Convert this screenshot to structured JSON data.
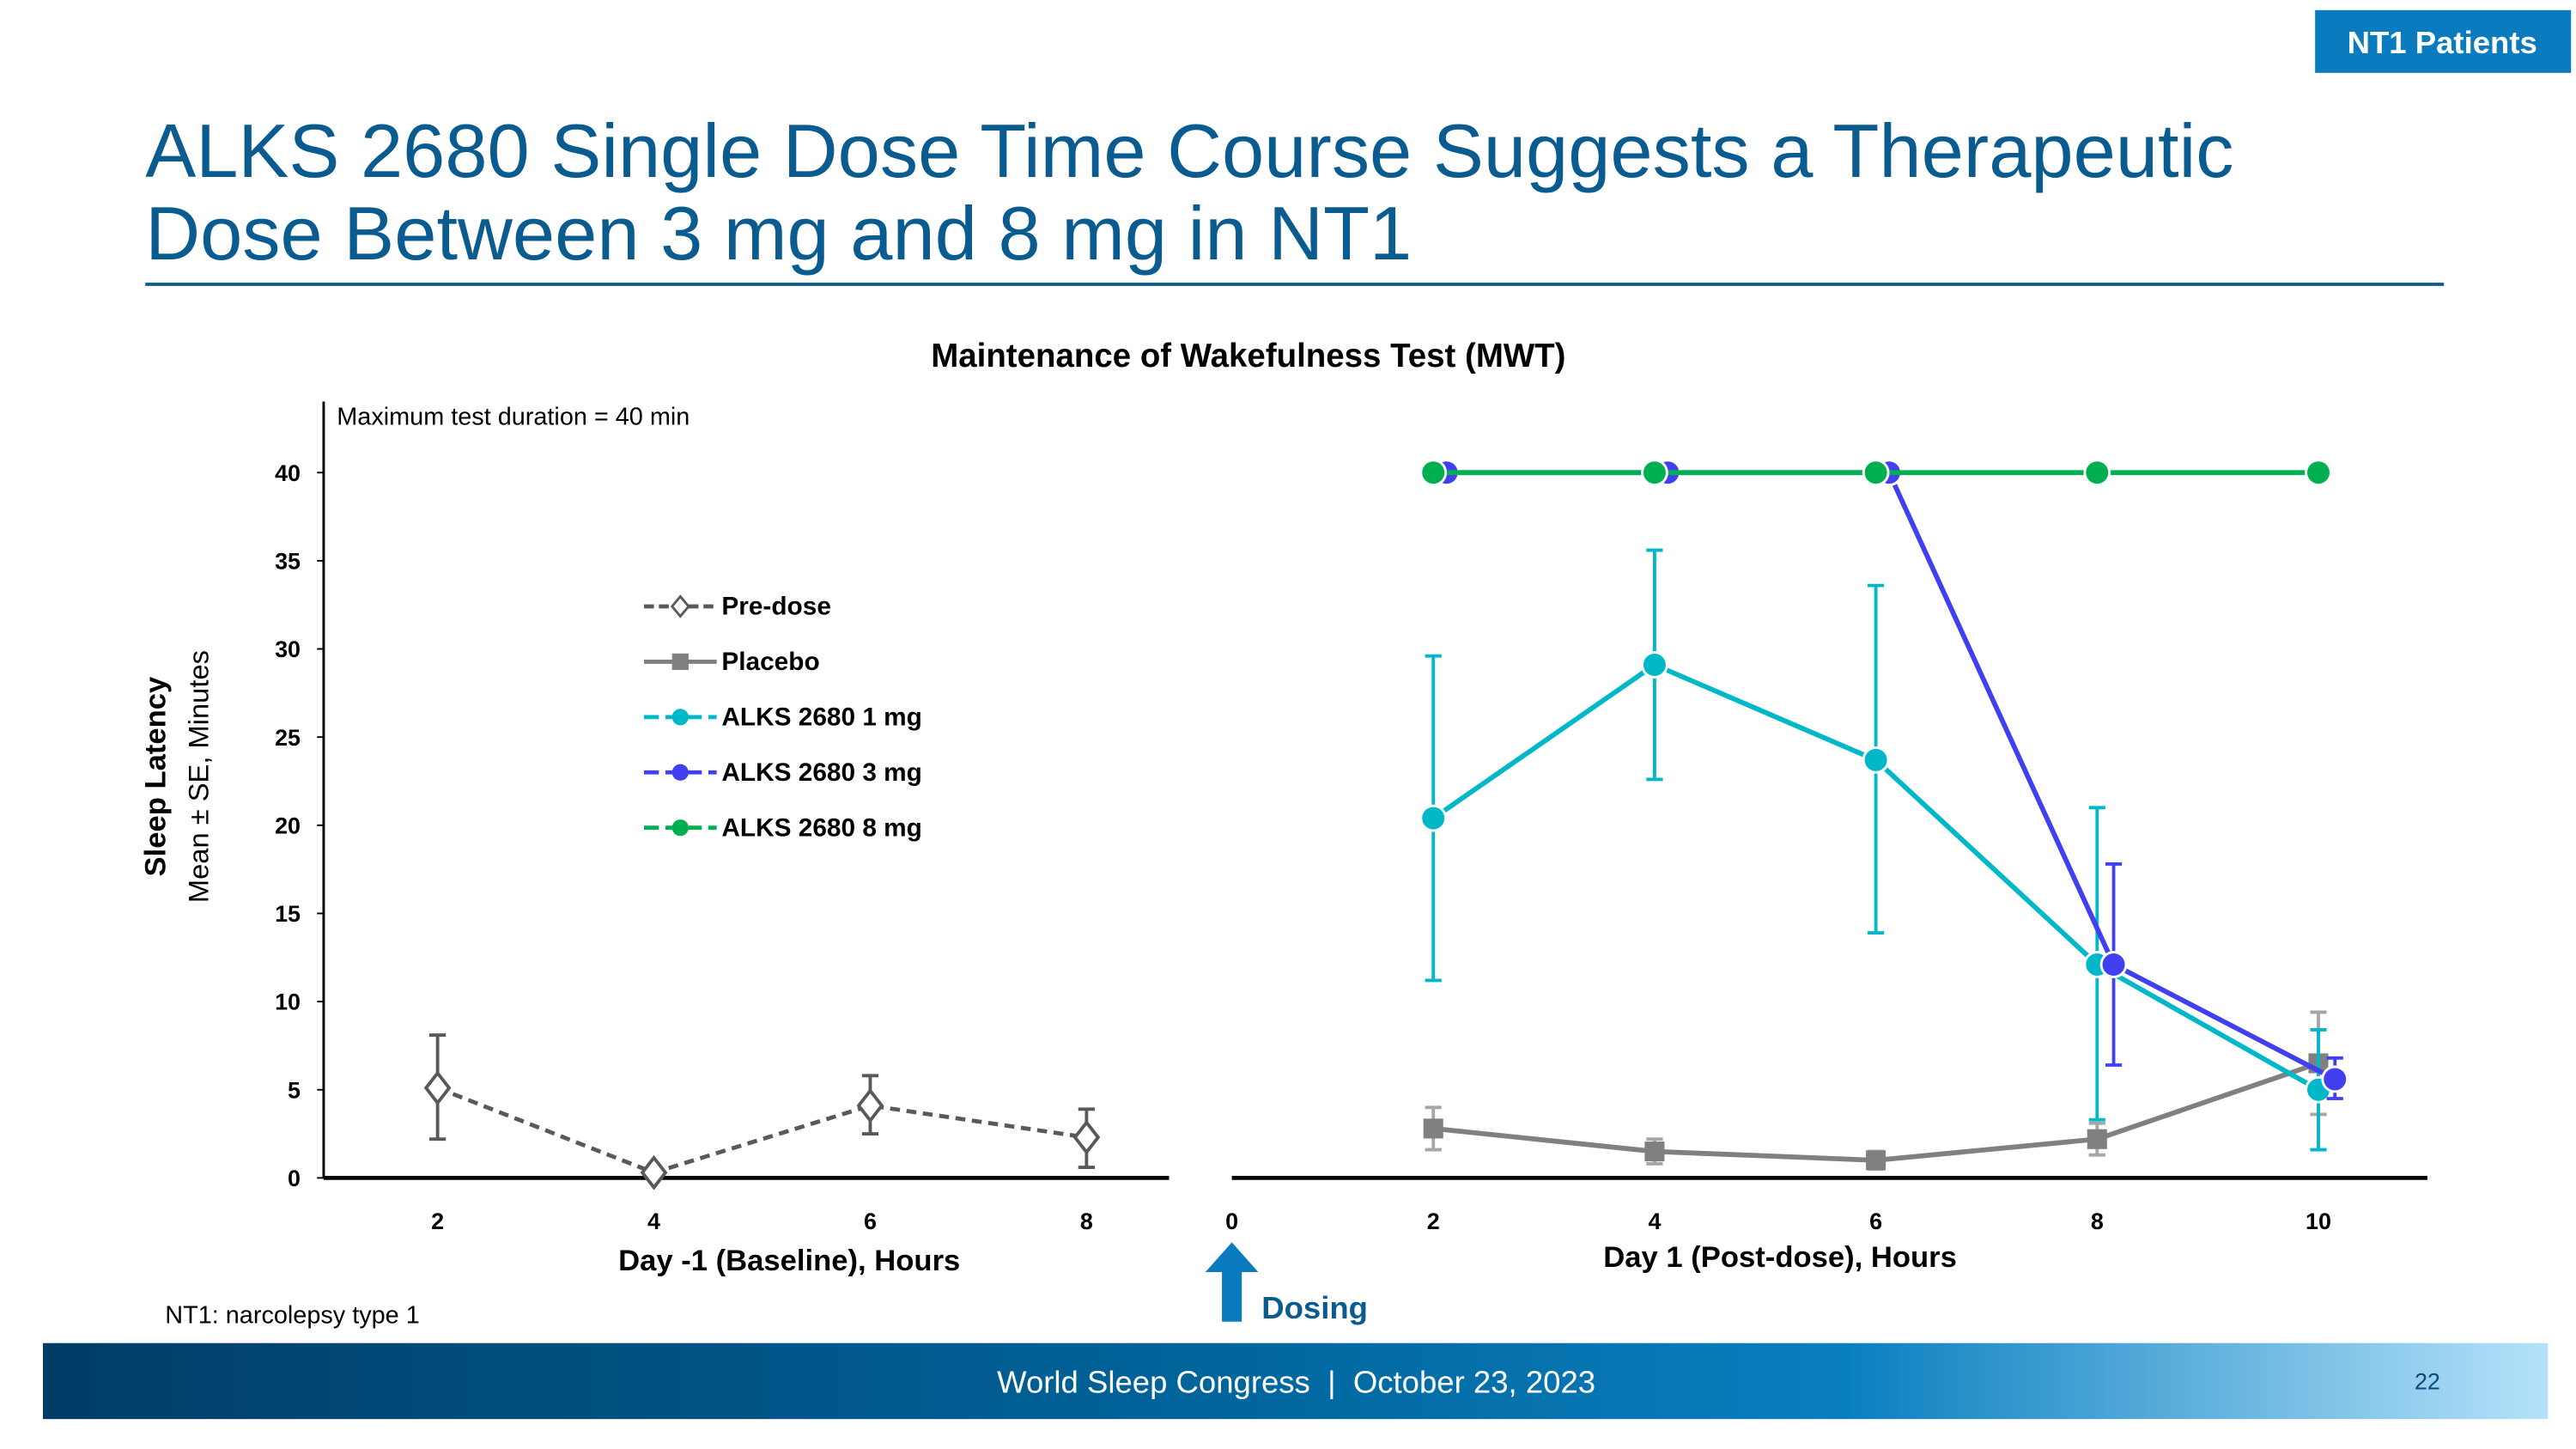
{
  "badge": "NT1 Patients",
  "title_line1": "ALKS 2680 Single Dose Time Course Suggests a Therapeutic",
  "title_line2": "Dose Between 3 mg and 8 mg in NT1",
  "footnote": "NT1: narcolepsy type 1",
  "dosing_label": "Dosing",
  "footer": {
    "text": "World Sleep Congress  |  October 23, 2023",
    "page": "22"
  },
  "colors": {
    "brand": "#0a5b8f",
    "badge": "#0a7bbf",
    "pre": "#595959",
    "placebo": "#808080",
    "mg1": "#00b8c8",
    "mg3": "#4040f0",
    "mg8": "#00b050"
  },
  "chart_data": {
    "type": "line",
    "title": "Maintenance of Wakefulness Test (MWT)",
    "annotation": "Maximum test duration = 40 min",
    "ylabel": "Sleep Latency",
    "ylabel2": "Mean ± SE, Minutes",
    "ylim": [
      0,
      40
    ],
    "yticks": [
      "0",
      "5",
      "10",
      "15",
      "20",
      "25",
      "30",
      "35",
      "40"
    ],
    "legend_position": "upper-left",
    "panels": [
      {
        "xlabel": "Day -1 (Baseline), Hours",
        "xticks": [
          "2",
          "4",
          "6",
          "8"
        ]
      },
      {
        "xlabel": "Day 1 (Post-dose), Hours",
        "xticks": [
          "0",
          "2",
          "4",
          "6",
          "8",
          "10"
        ]
      }
    ],
    "series": [
      {
        "name": "Pre-dose",
        "panel": 0,
        "x": [
          2,
          4,
          6,
          8
        ],
        "y": [
          5.1,
          0.3,
          4.1,
          2.3
        ],
        "lo": [
          2.2,
          null,
          2.5,
          0.6
        ],
        "hi": [
          8.1,
          null,
          5.8,
          3.9
        ],
        "marker": "diamond-open",
        "dash": true
      },
      {
        "name": "Placebo",
        "panel": 1,
        "x": [
          2,
          4,
          6,
          8,
          10
        ],
        "y": [
          2.8,
          1.5,
          1.0,
          2.2,
          6.5
        ],
        "lo": [
          1.6,
          0.8,
          0.5,
          1.3,
          3.6
        ],
        "hi": [
          4.0,
          2.2,
          1.5,
          3.1,
          9.4
        ],
        "marker": "square"
      },
      {
        "name": "ALKS 2680 1 mg",
        "panel": 1,
        "x": [
          2,
          4,
          6,
          8,
          10
        ],
        "y": [
          20.4,
          29.1,
          23.7,
          12.1,
          5.0
        ],
        "lo": [
          11.2,
          22.6,
          13.9,
          3.3,
          1.6
        ],
        "hi": [
          29.6,
          35.6,
          33.6,
          21.0,
          8.4
        ],
        "marker": "circle"
      },
      {
        "name": "ALKS 2680 3 mg",
        "panel": 1,
        "x": [
          2,
          4,
          6,
          8,
          10
        ],
        "y": [
          40,
          40,
          40,
          12.1,
          5.6
        ],
        "lo": [
          null,
          null,
          null,
          6.4,
          4.5
        ],
        "hi": [
          null,
          null,
          null,
          17.8,
          6.8
        ],
        "marker": "circle"
      },
      {
        "name": "ALKS 2680 8 mg",
        "panel": 1,
        "x": [
          2,
          4,
          6,
          8,
          10
        ],
        "y": [
          40,
          40,
          40,
          40,
          40
        ],
        "lo": [
          null,
          null,
          null,
          null,
          null
        ],
        "hi": [
          null,
          null,
          null,
          null,
          null
        ],
        "marker": "circle"
      }
    ]
  }
}
